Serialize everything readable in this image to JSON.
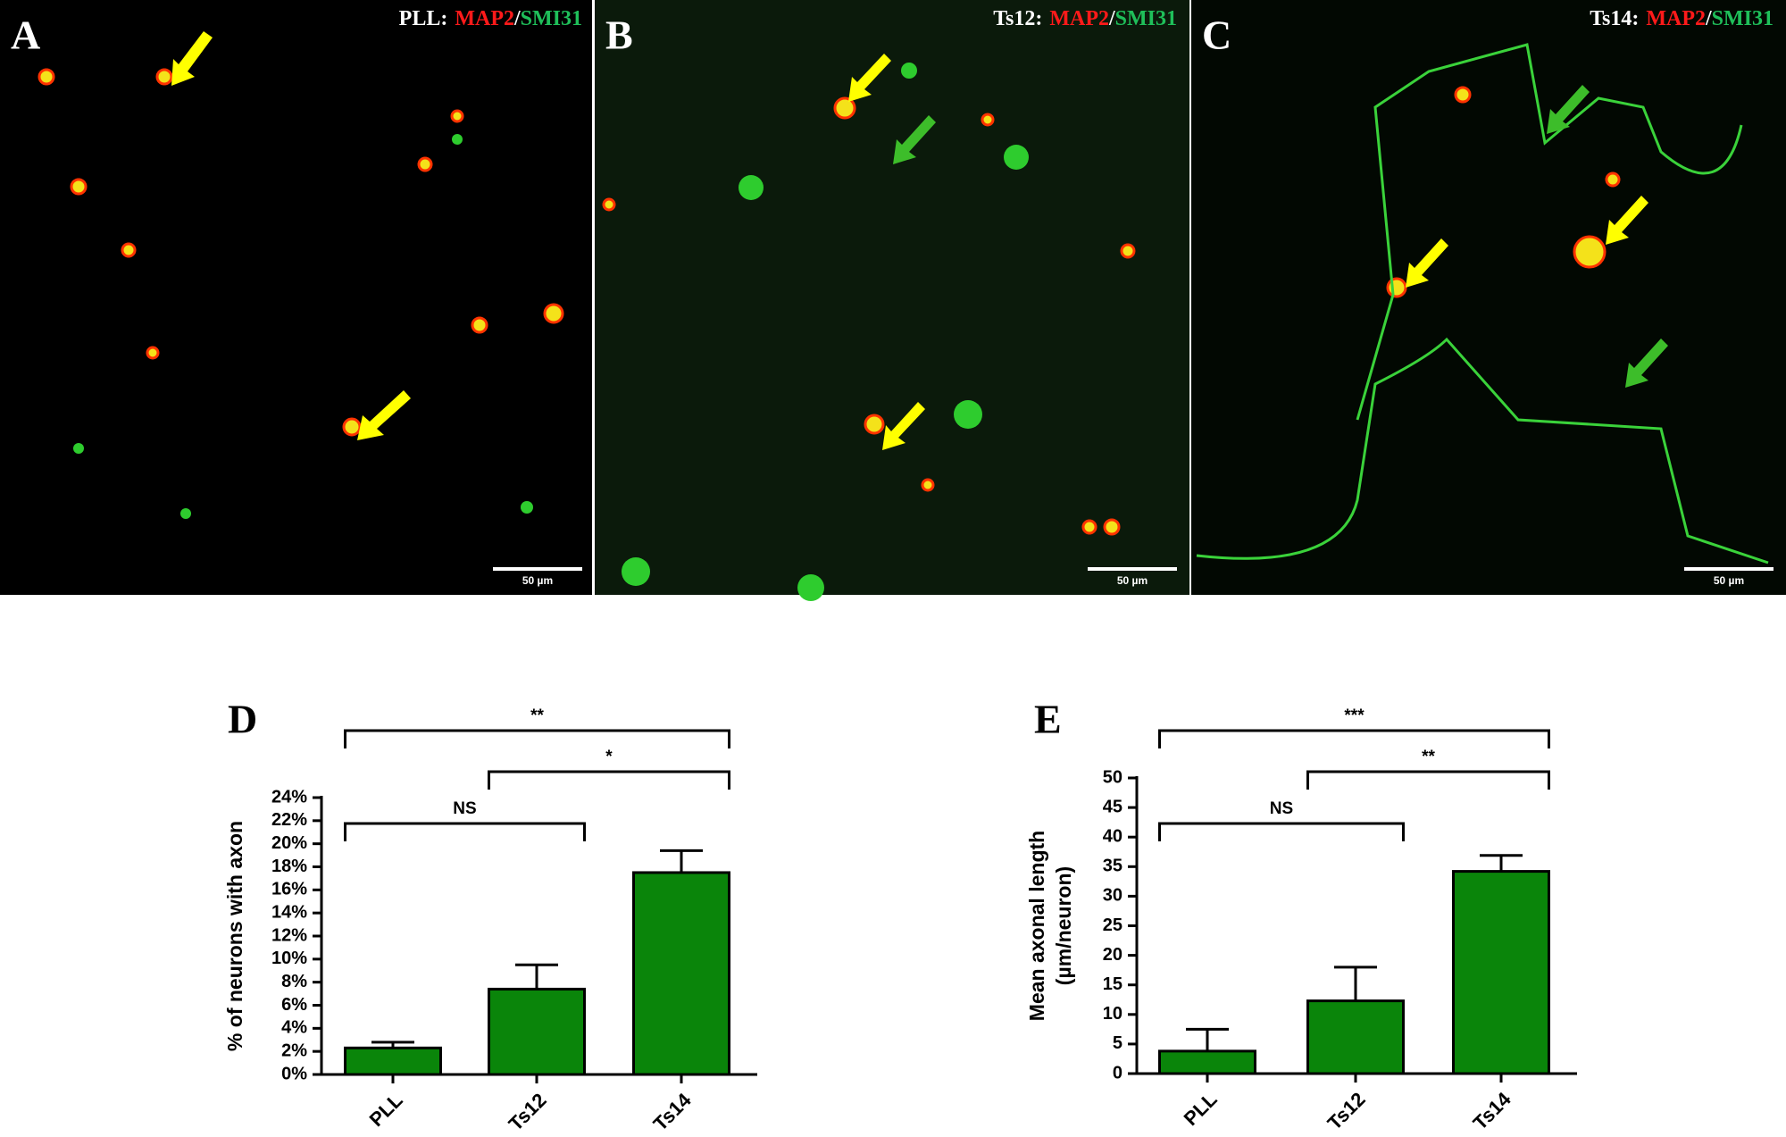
{
  "panels": [
    {
      "letter": "A",
      "title": [
        {
          "text": "PLL:",
          "color": "#ffffff"
        },
        {
          "text": "MAP2",
          "color": "#ff1a1a"
        },
        {
          "text": "/",
          "color": "#ffffff"
        },
        {
          "text": "SMI31",
          "color": "#1fbf5a"
        }
      ],
      "scale_bar": "50 µm"
    },
    {
      "letter": "B",
      "title": [
        {
          "text": "Ts12:",
          "color": "#ffffff"
        },
        {
          "text": "MAP2",
          "color": "#ff1a1a"
        },
        {
          "text": "/",
          "color": "#ffffff"
        },
        {
          "text": "SMI31",
          "color": "#1fbf5a"
        }
      ],
      "scale_bar": "50 µm"
    },
    {
      "letter": "C",
      "title": [
        {
          "text": "Ts14:",
          "color": "#ffffff"
        },
        {
          "text": "MAP2",
          "color": "#ff1a1a"
        },
        {
          "text": "/",
          "color": "#ffffff"
        },
        {
          "text": "SMI31",
          "color": "#1fbf5a"
        }
      ],
      "scale_bar": "50 µm"
    }
  ],
  "chart_data": [
    {
      "type": "bar",
      "title": "D",
      "ylabel": [
        "% of neurons with axon"
      ],
      "categories": [
        "PLL",
        "Ts12",
        "Ts14"
      ],
      "values": [
        2.3,
        7.4,
        17.5
      ],
      "errors": [
        0.5,
        2.1,
        1.9
      ],
      "color": "#0a850a",
      "ylim": [
        0,
        24
      ],
      "yticks": [
        {
          "value": 0,
          "label": "0%"
        },
        {
          "value": 2,
          "label": "2%"
        },
        {
          "value": 4,
          "label": "4%"
        },
        {
          "value": 6,
          "label": "6%"
        },
        {
          "value": 8,
          "label": "8%"
        },
        {
          "value": 10,
          "label": "10%"
        },
        {
          "value": 12,
          "label": "12%"
        },
        {
          "value": 14,
          "label": "14%"
        },
        {
          "value": 16,
          "label": "16%"
        },
        {
          "value": 18,
          "label": "18%"
        },
        {
          "value": 20,
          "label": "20%"
        },
        {
          "value": 22,
          "label": "22%"
        },
        {
          "value": 24,
          "label": "24%"
        }
      ],
      "annotations": [
        {
          "text": "**",
          "pair": [
            0,
            2
          ]
        },
        {
          "text": "*",
          "pair": [
            1,
            2
          ]
        },
        {
          "text": "NS",
          "pair": [
            0,
            1
          ]
        }
      ]
    },
    {
      "type": "bar",
      "title": "E",
      "ylabel": [
        "Mean axonal length",
        "(µm/neuron)"
      ],
      "categories": [
        "PLL",
        "Ts12",
        "Ts14"
      ],
      "values": [
        3.8,
        12.3,
        34.2
      ],
      "errors": [
        3.7,
        5.7,
        2.7
      ],
      "color": "#0a850a",
      "ylim": [
        0,
        50
      ],
      "yticks": [
        0,
        5,
        10,
        15,
        20,
        25,
        30,
        35,
        40,
        45,
        50
      ],
      "annotations": [
        {
          "text": "***",
          "pair": [
            0,
            2
          ]
        },
        {
          "text": "**",
          "pair": [
            1,
            2
          ]
        },
        {
          "text": "NS",
          "pair": [
            0,
            1
          ]
        }
      ]
    }
  ]
}
